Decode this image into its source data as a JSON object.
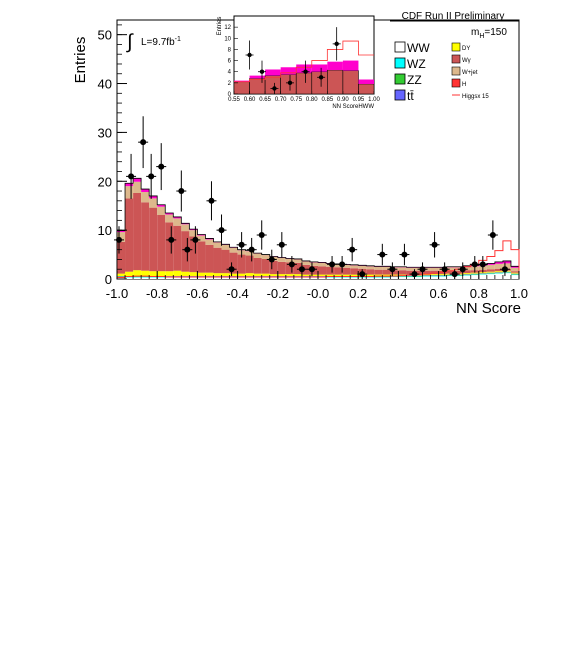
{
  "chart_data": [
    {
      "type": "bar",
      "title": "CDF Run II Preliminary",
      "xlabel": "NN Score",
      "ylabel": "Entries",
      "xlim": [
        -1.0,
        1.0
      ],
      "ylim": [
        0,
        53
      ],
      "x_ticks": [
        "-1.0",
        "-0.8",
        "-0.6",
        "-0.4",
        "-0.2",
        "-0.0",
        "0.2",
        "0.4",
        "0.6",
        "0.8",
        "1.0"
      ],
      "y_ticks": [
        "0",
        "10",
        "20",
        "30",
        "40",
        "50"
      ],
      "annotations": {
        "lumi": "L=9.7fb",
        "lumi_exp": "-1",
        "mass": "m",
        "mass_sub": "H",
        "mass_val": "=150"
      },
      "bin_edges": [
        -1.0,
        -0.96,
        -0.92,
        -0.88,
        -0.84,
        -0.8,
        -0.76,
        -0.72,
        -0.68,
        -0.64,
        -0.6,
        -0.56,
        -0.52,
        -0.48,
        -0.44,
        -0.4,
        -0.36,
        -0.32,
        -0.28,
        -0.24,
        -0.2,
        -0.16,
        -0.12,
        -0.08,
        -0.04,
        0.0,
        0.04,
        0.08,
        0.12,
        0.16,
        0.2,
        0.24,
        0.28,
        0.32,
        0.36,
        0.4,
        0.44,
        0.48,
        0.52,
        0.56,
        0.6,
        0.64,
        0.68,
        0.72,
        0.76,
        0.8,
        0.84,
        0.88,
        0.92,
        0.96,
        1.0
      ],
      "series": [
        {
          "name": "WW",
          "color": "#ffffff",
          "values": [
            0.3,
            0.3,
            0.3,
            0.3,
            0.3,
            0.3,
            0.3,
            0.3,
            0.3,
            0.3,
            0.3,
            0.3,
            0.3,
            0.3,
            0.3,
            0.3,
            0.3,
            0.3,
            0.3,
            0.3,
            0.3,
            0.3,
            0.3,
            0.3,
            0.3,
            0.3,
            0.3,
            0.3,
            0.3,
            0.3,
            0.3,
            0.3,
            0.3,
            0.3,
            0.4,
            0.4,
            0.4,
            0.4,
            0.5,
            0.5,
            0.5,
            0.6,
            0.6,
            0.7,
            0.8,
            0.9,
            1.0,
            1.1,
            1.2,
            0.8
          ]
        },
        {
          "name": "WZ",
          "color": "#00ffff",
          "values": [
            0.1,
            0.1,
            0.1,
            0.1,
            0.1,
            0.1,
            0.1,
            0.1,
            0.1,
            0.1,
            0.1,
            0.1,
            0.1,
            0.1,
            0.1,
            0.1,
            0.1,
            0.1,
            0.1,
            0.1,
            0.1,
            0.1,
            0.1,
            0.1,
            0.1,
            0.1,
            0.1,
            0.1,
            0.1,
            0.1,
            0.1,
            0.1,
            0.1,
            0.1,
            0.1,
            0.1,
            0.1,
            0.1,
            0.1,
            0.1,
            0.1,
            0.1,
            0.1,
            0.1,
            0.1,
            0.1,
            0.1,
            0.1,
            0.1,
            0.1
          ]
        },
        {
          "name": "ZZ",
          "color": "#33cc33",
          "values": [
            0.1,
            0.1,
            0.1,
            0.1,
            0.1,
            0.1,
            0.1,
            0.1,
            0.1,
            0.1,
            0.1,
            0.1,
            0.1,
            0.1,
            0.1,
            0.1,
            0.1,
            0.1,
            0.1,
            0.1,
            0.1,
            0.1,
            0.1,
            0.1,
            0.1,
            0.1,
            0.1,
            0.1,
            0.1,
            0.1,
            0.1,
            0.1,
            0.1,
            0.1,
            0.1,
            0.1,
            0.1,
            0.1,
            0.1,
            0.1,
            0.1,
            0.1,
            0.1,
            0.1,
            0.1,
            0.1,
            0.1,
            0.1,
            0.1,
            0.1
          ]
        },
        {
          "name": "tt",
          "color": "#6666ff",
          "values": [
            0.1,
            0.1,
            0.1,
            0.1,
            0.1,
            0.1,
            0.1,
            0.1,
            0.1,
            0.1,
            0.1,
            0.1,
            0.1,
            0.1,
            0.1,
            0.1,
            0.1,
            0.1,
            0.1,
            0.1,
            0.1,
            0.1,
            0.1,
            0.1,
            0.1,
            0.1,
            0.1,
            0.1,
            0.1,
            0.1,
            0.1,
            0.1,
            0.1,
            0.1,
            0.1,
            0.1,
            0.1,
            0.1,
            0.1,
            0.1,
            0.1,
            0.1,
            0.1,
            0.1,
            0.1,
            0.1,
            0.1,
            0.1,
            0.1,
            0.1
          ]
        },
        {
          "name": "DY",
          "color": "#ffff00",
          "values": [
            0.5,
            0.9,
            1.2,
            1.1,
            1.0,
            1.0,
            1.0,
            1.1,
            0.9,
            0.8,
            0.7,
            0.7,
            0.6,
            0.6,
            0.5,
            0.5,
            0.6,
            0.5,
            0.5,
            0.4,
            0.4,
            0.4,
            0.4,
            0.3,
            0.3,
            0.3,
            0.3,
            0.3,
            0.3,
            0.3,
            0.3,
            0.3,
            0.3,
            0.3,
            0.2,
            0.2,
            0.2,
            0.2,
            0.2,
            0.2,
            0.2,
            0.2,
            0.2,
            0.2,
            0.2,
            0.2,
            0.2,
            0.2,
            0.2,
            0.2
          ]
        },
        {
          "name": "Wγ",
          "color": "#cc5555",
          "values": [
            6.5,
            15.0,
            15.8,
            14.0,
            13.0,
            11.5,
            10.0,
            9.2,
            8.3,
            7.3,
            6.4,
            5.7,
            5.2,
            4.8,
            4.3,
            3.9,
            3.6,
            3.2,
            3.0,
            2.7,
            2.5,
            2.4,
            2.3,
            2.0,
            1.8,
            1.7,
            1.6,
            1.5,
            1.4,
            1.3,
            1.2,
            1.1,
            1.0,
            1.0,
            0.9,
            0.9,
            0.8,
            0.8,
            0.7,
            0.7,
            0.7,
            0.6,
            0.6,
            0.6,
            0.5,
            0.5,
            0.5,
            0.5,
            0.4,
            0.3
          ]
        },
        {
          "name": "W+jet",
          "color": "#ddb88c",
          "values": [
            2.0,
            2.5,
            2.3,
            2.1,
            1.9,
            1.7,
            1.6,
            1.5,
            1.4,
            1.3,
            1.2,
            1.1,
            1.1,
            1.0,
            1.0,
            0.9,
            0.9,
            0.9,
            0.8,
            0.8,
            0.8,
            0.7,
            0.7,
            0.7,
            0.7,
            0.7,
            0.6,
            0.6,
            0.6,
            0.6,
            0.6,
            0.6,
            0.6,
            0.6,
            0.6,
            0.6,
            0.6,
            0.6,
            0.6,
            0.6,
            0.6,
            0.7,
            0.7,
            0.7,
            0.8,
            0.8,
            0.9,
            1.0,
            1.1,
            0.7
          ]
        },
        {
          "name": "H",
          "color": "#ff00cc",
          "values": [
            0.3,
            0.6,
            0.7,
            0.6,
            0.5,
            0.4,
            0.3,
            0.3,
            0.2,
            0.2,
            0.2,
            0.2,
            0.1,
            0.1,
            0.1,
            0.1,
            0.1,
            0.1,
            0.1,
            0.1,
            0.1,
            0.1,
            0.1,
            0.1,
            0.1,
            0.1,
            0.1,
            0.1,
            0.1,
            0.1,
            0.1,
            0.1,
            0.1,
            0.1,
            0.1,
            0.1,
            0.1,
            0.1,
            0.1,
            0.1,
            0.1,
            0.1,
            0.1,
            0.2,
            0.2,
            0.2,
            0.3,
            0.4,
            0.5,
            0.3
          ]
        }
      ],
      "signal": {
        "name": "Higgsx 15",
        "color": "#ff3333",
        "values": [
          0.3,
          0.5,
          0.6,
          0.6,
          0.5,
          0.5,
          0.4,
          0.4,
          0.4,
          0.4,
          0.4,
          0.4,
          0.4,
          0.4,
          0.4,
          0.4,
          0.4,
          0.4,
          0.4,
          0.4,
          0.4,
          0.4,
          0.4,
          0.4,
          0.4,
          0.4,
          0.5,
          0.5,
          0.5,
          0.5,
          0.5,
          0.5,
          0.6,
          0.6,
          0.6,
          0.7,
          0.8,
          0.9,
          1.0,
          1.2,
          1.4,
          1.7,
          2.0,
          2.5,
          3.0,
          3.8,
          4.6,
          5.8,
          7.8,
          6.0
        ]
      },
      "data_points": [
        {
          "x": -0.99,
          "y": 8,
          "err": 2.8
        },
        {
          "x": -0.93,
          "y": 21,
          "err": 4.6
        },
        {
          "x": -0.87,
          "y": 28,
          "err": 5.3
        },
        {
          "x": -0.83,
          "y": 21,
          "err": 4.6
        },
        {
          "x": -0.78,
          "y": 23,
          "err": 4.8
        },
        {
          "x": -0.73,
          "y": 8,
          "err": 2.8
        },
        {
          "x": -0.68,
          "y": 18,
          "err": 4.2
        },
        {
          "x": -0.65,
          "y": 6,
          "err": 2.4
        },
        {
          "x": -0.61,
          "y": 8,
          "err": 2.8
        },
        {
          "x": -0.53,
          "y": 16,
          "err": 4.0
        },
        {
          "x": -0.48,
          "y": 10,
          "err": 3.2
        },
        {
          "x": -0.43,
          "y": 2,
          "err": 1.4
        },
        {
          "x": -0.38,
          "y": 7,
          "err": 2.6
        },
        {
          "x": -0.33,
          "y": 6,
          "err": 2.4
        },
        {
          "x": -0.28,
          "y": 9,
          "err": 3.0
        },
        {
          "x": -0.23,
          "y": 4,
          "err": 2.0
        },
        {
          "x": -0.18,
          "y": 7,
          "err": 2.6
        },
        {
          "x": -0.13,
          "y": 3,
          "err": 1.7
        },
        {
          "x": -0.08,
          "y": 2,
          "err": 1.4
        },
        {
          "x": -0.03,
          "y": 2,
          "err": 1.4
        },
        {
          "x": 0.07,
          "y": 3,
          "err": 1.7
        },
        {
          "x": 0.12,
          "y": 3,
          "err": 1.7
        },
        {
          "x": 0.17,
          "y": 6,
          "err": 2.4
        },
        {
          "x": 0.22,
          "y": 1,
          "err": 1.0
        },
        {
          "x": 0.32,
          "y": 5,
          "err": 2.2
        },
        {
          "x": 0.37,
          "y": 2,
          "err": 1.4
        },
        {
          "x": 0.43,
          "y": 5,
          "err": 2.2
        },
        {
          "x": 0.48,
          "y": 1,
          "err": 1.0
        },
        {
          "x": 0.52,
          "y": 2,
          "err": 1.4
        },
        {
          "x": 0.58,
          "y": 7,
          "err": 2.6
        },
        {
          "x": 0.63,
          "y": 2,
          "err": 1.4
        },
        {
          "x": 0.68,
          "y": 1,
          "err": 1.0
        },
        {
          "x": 0.72,
          "y": 2,
          "err": 1.4
        },
        {
          "x": 0.78,
          "y": 3,
          "err": 1.7
        },
        {
          "x": 0.82,
          "y": 3,
          "err": 1.7
        },
        {
          "x": 0.87,
          "y": 9,
          "err": 3.0
        },
        {
          "x": 0.93,
          "y": 2,
          "err": 1.4
        }
      ],
      "legend": {
        "placement": "top-right",
        "left": [
          {
            "label": "WW",
            "color": "#ffffff"
          },
          {
            "label": "WZ",
            "color": "#00ffff"
          },
          {
            "label": "ZZ",
            "color": "#33cc33"
          },
          {
            "label": "tt̄",
            "color": "#6666ff"
          }
        ],
        "right": [
          {
            "label": "DY",
            "color": "#ffff00"
          },
          {
            "label": "Wγ",
            "color": "#cc5555"
          },
          {
            "label": "W+jet",
            "color": "#ddb88c"
          },
          {
            "label": "H",
            "color": "#ff3333"
          },
          {
            "label": "Higgsx 15",
            "color": "#ff3333",
            "line": true
          }
        ]
      }
    },
    {
      "type": "bar",
      "title": "",
      "xlabel": "NN ScoreHWW",
      "ylabel": "Entries",
      "xlim": [
        0.55,
        1.0
      ],
      "ylim": [
        0,
        14
      ],
      "x_ticks": [
        "0.55",
        "0.60",
        "0.65",
        "0.70",
        "0.75",
        "0.80",
        "0.85",
        "0.90",
        "0.95",
        "1.00"
      ],
      "y_ticks": [
        "0",
        "2",
        "4",
        "6",
        "8",
        "10",
        "12"
      ],
      "bin_edges": [
        0.55,
        0.6,
        0.65,
        0.7,
        0.75,
        0.8,
        0.85,
        0.9,
        0.95,
        1.0
      ],
      "background_total": [
        2.2,
        2.8,
        3.3,
        3.5,
        3.8,
        4.0,
        4.3,
        4.2,
        1.8
      ],
      "higgs_band": [
        0.2,
        0.5,
        1.1,
        1.3,
        1.5,
        1.3,
        1.5,
        1.8,
        0.8
      ],
      "signal": [
        2.2,
        2.6,
        3.0,
        3.8,
        4.8,
        6.0,
        8.0,
        9.5,
        7.0
      ],
      "data_points": [
        {
          "x": 0.6,
          "y": 7,
          "err": 2.6
        },
        {
          "x": 0.64,
          "y": 4,
          "err": 2.0
        },
        {
          "x": 0.68,
          "y": 1,
          "err": 1.0
        },
        {
          "x": 0.73,
          "y": 2,
          "err": 1.4
        },
        {
          "x": 0.78,
          "y": 4,
          "err": 2.0
        },
        {
          "x": 0.83,
          "y": 3,
          "err": 1.7
        },
        {
          "x": 0.88,
          "y": 9,
          "err": 3.0
        }
      ]
    }
  ]
}
